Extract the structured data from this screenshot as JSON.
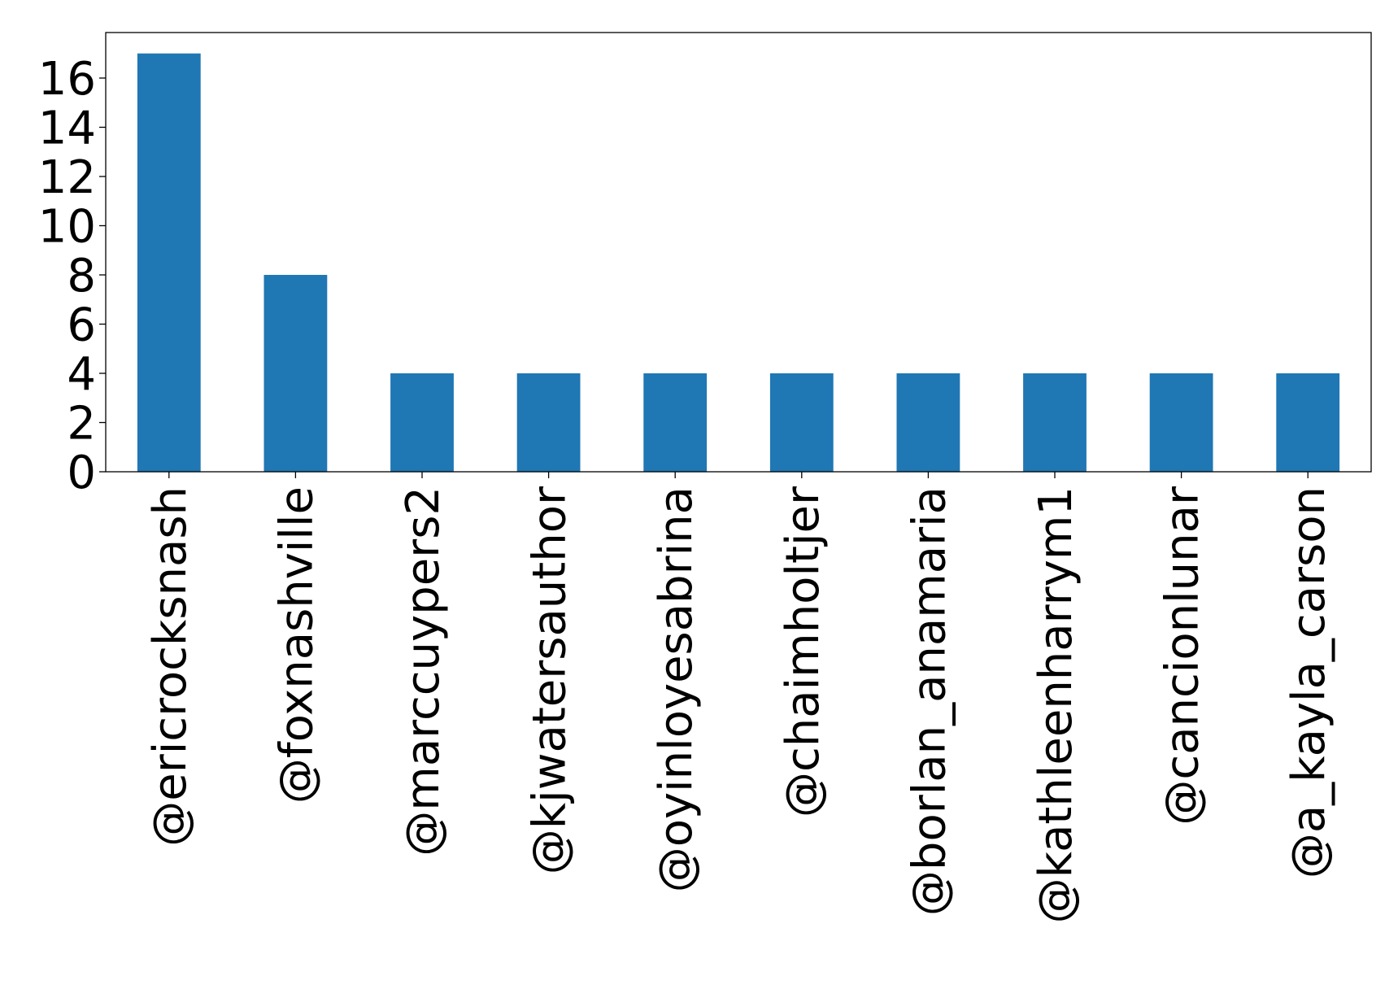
{
  "chart_data": {
    "type": "bar",
    "title": "",
    "xlabel": "",
    "ylabel": "",
    "categories": [
      "@ericrocksnash",
      "@foxnashville",
      "@marccuypers2",
      "@kjwatersauthor",
      "@oyinloyesabrina",
      "@chaimholtjer",
      "@borlan_anamaria",
      "@kathleenharrym1",
      "@cancionlunar",
      "@a_kayla_carson"
    ],
    "values": [
      17,
      8,
      4,
      4,
      4,
      4,
      4,
      4,
      4,
      4
    ],
    "ylim": [
      0,
      17.85
    ],
    "yticks": [
      0,
      2,
      4,
      6,
      8,
      10,
      12,
      14,
      16
    ],
    "bar_color": "#1f77b4",
    "grid": false,
    "legend": "none"
  }
}
